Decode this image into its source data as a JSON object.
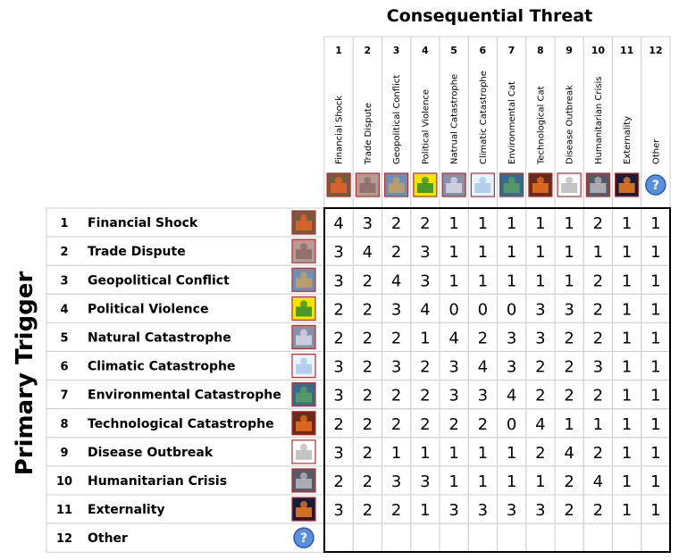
{
  "chart_data": {
    "type": "heatmap",
    "title": "Consequential Threat",
    "ylabel": "Primary Trigger",
    "columns": [
      {
        "num": "1",
        "label": "Financial Shock",
        "icon": "financial-shock-icon"
      },
      {
        "num": "2",
        "label": "Trade Dispute",
        "icon": "trade-dispute-icon"
      },
      {
        "num": "3",
        "label": "Geopolitical Conflict",
        "icon": "geopolitical-conflict-icon"
      },
      {
        "num": "4",
        "label": "Political Violence",
        "icon": "political-violence-icon"
      },
      {
        "num": "5",
        "label": "Natrual Catastrophe",
        "icon": "natural-catastrophe-icon"
      },
      {
        "num": "6",
        "label": "Climatic Catastrophe",
        "icon": "climatic-catastrophe-icon"
      },
      {
        "num": "7",
        "label": "Environmental Cat",
        "icon": "environmental-catastrophe-icon"
      },
      {
        "num": "8",
        "label": "Technological Cat",
        "icon": "technological-catastrophe-icon"
      },
      {
        "num": "9",
        "label": "Disease Outbreak",
        "icon": "disease-outbreak-icon"
      },
      {
        "num": "10",
        "label": "Humanitarian Crisis",
        "icon": "humanitarian-crisis-icon"
      },
      {
        "num": "11",
        "label": "Externality",
        "icon": "externality-icon"
      },
      {
        "num": "12",
        "label": "Other",
        "icon": "question-icon"
      }
    ],
    "rows": [
      {
        "num": "1",
        "label": "Financial Shock",
        "icon": "financial-shock-icon"
      },
      {
        "num": "2",
        "label": "Trade Dispute",
        "icon": "trade-dispute-icon"
      },
      {
        "num": "3",
        "label": "Geopolitical Conflict",
        "icon": "geopolitical-conflict-icon"
      },
      {
        "num": "4",
        "label": "Political Violence",
        "icon": "political-violence-icon"
      },
      {
        "num": "5",
        "label": "Natural Catastrophe",
        "icon": "natural-catastrophe-icon"
      },
      {
        "num": "6",
        "label": "Climatic Catastrophe",
        "icon": "climatic-catastrophe-icon"
      },
      {
        "num": "7",
        "label": "Environmental Catastrophe",
        "icon": "environmental-catastrophe-icon"
      },
      {
        "num": "8",
        "label": "Technological Catastrophe",
        "icon": "technological-catastrophe-icon"
      },
      {
        "num": "9",
        "label": "Disease Outbreak",
        "icon": "disease-outbreak-icon"
      },
      {
        "num": "10",
        "label": "Humanitarian Crisis",
        "icon": "humanitarian-crisis-icon"
      },
      {
        "num": "11",
        "label": "Externality",
        "icon": "externality-icon"
      },
      {
        "num": "12",
        "label": "Other",
        "icon": "question-icon"
      }
    ],
    "values": [
      [
        4,
        3,
        2,
        2,
        1,
        1,
        1,
        1,
        1,
        2,
        1,
        1
      ],
      [
        3,
        4,
        2,
        3,
        1,
        1,
        1,
        1,
        1,
        1,
        1,
        1
      ],
      [
        3,
        2,
        4,
        3,
        1,
        1,
        1,
        1,
        1,
        2,
        1,
        1
      ],
      [
        2,
        2,
        3,
        4,
        0,
        0,
        0,
        3,
        3,
        2,
        1,
        1
      ],
      [
        2,
        2,
        2,
        1,
        4,
        2,
        3,
        3,
        2,
        2,
        1,
        1
      ],
      [
        3,
        2,
        3,
        2,
        3,
        4,
        3,
        2,
        2,
        3,
        1,
        1
      ],
      [
        3,
        2,
        2,
        2,
        3,
        3,
        4,
        2,
        2,
        2,
        1,
        1
      ],
      [
        2,
        2,
        2,
        2,
        2,
        2,
        0,
        4,
        1,
        1,
        1,
        1
      ],
      [
        3,
        2,
        1,
        1,
        1,
        1,
        1,
        2,
        4,
        2,
        1,
        1
      ],
      [
        2,
        2,
        3,
        3,
        1,
        1,
        1,
        1,
        2,
        4,
        1,
        1
      ],
      [
        3,
        2,
        2,
        1,
        3,
        3,
        3,
        3,
        2,
        2,
        1,
        1
      ],
      [
        null,
        null,
        null,
        null,
        null,
        null,
        null,
        null,
        null,
        null,
        null,
        null
      ]
    ],
    "color_scale": {
      "0": "#f2f2f2",
      "1": "#ccffcc",
      "2": "#ffff99",
      "3": "#ffc000",
      "4": "#ff5a1e"
    },
    "legend": "none",
    "grid": true
  }
}
